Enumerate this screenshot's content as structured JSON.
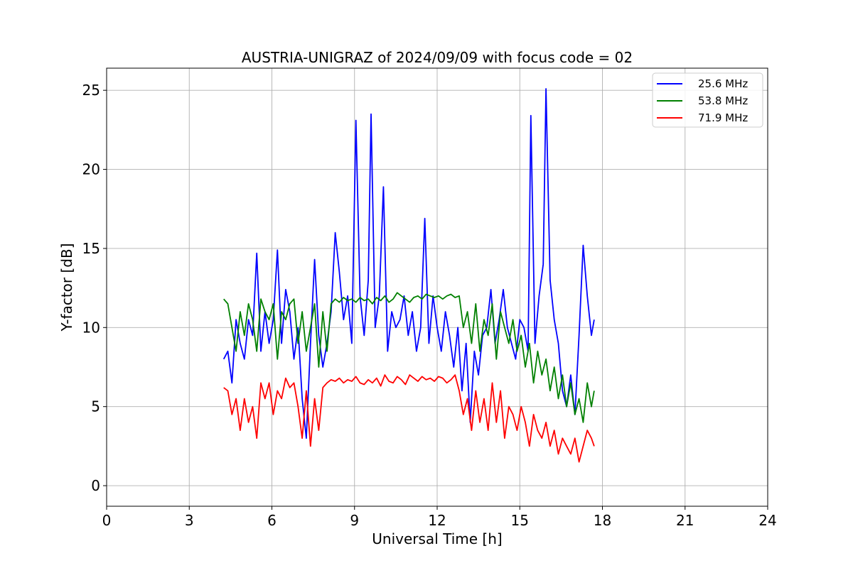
{
  "chart_data": {
    "type": "line",
    "title": "AUSTRIA-UNIGRAZ of 2024/09/09 with focus code = 02",
    "xlabel": "Universal Time [h]",
    "ylabel": "Y-factor [dB]",
    "xlim": [
      0,
      24
    ],
    "ylim": [
      -1.3,
      26.4
    ],
    "xticks": [
      0,
      3,
      6,
      9,
      12,
      15,
      18,
      21,
      24
    ],
    "yticks": [
      0,
      5,
      10,
      15,
      20,
      25
    ],
    "grid": true,
    "legend_position": "top-right",
    "series": [
      {
        "name": "25.6 MHz",
        "color": "#0000ff",
        "x": [
          4.25,
          4.4,
          4.55,
          4.7,
          4.85,
          5.0,
          5.15,
          5.3,
          5.45,
          5.6,
          5.75,
          5.9,
          6.05,
          6.2,
          6.35,
          6.5,
          6.65,
          6.8,
          6.95,
          7.1,
          7.25,
          7.4,
          7.55,
          7.7,
          7.85,
          8.0,
          8.15,
          8.3,
          8.45,
          8.6,
          8.75,
          8.9,
          9.05,
          9.2,
          9.35,
          9.5,
          9.6,
          9.75,
          9.9,
          10.05,
          10.2,
          10.35,
          10.5,
          10.65,
          10.8,
          10.95,
          11.1,
          11.25,
          11.4,
          11.55,
          11.7,
          11.85,
          12.0,
          12.15,
          12.3,
          12.45,
          12.6,
          12.75,
          12.9,
          13.05,
          13.2,
          13.35,
          13.5,
          13.65,
          13.8,
          13.95,
          14.1,
          14.25,
          14.4,
          14.55,
          14.7,
          14.85,
          15.0,
          15.15,
          15.3,
          15.4,
          15.55,
          15.7,
          15.85,
          15.95,
          16.1,
          16.25,
          16.4,
          16.55,
          16.7,
          16.85,
          17.0,
          17.15,
          17.3,
          17.45,
          17.6,
          17.7
        ],
        "y": [
          8.0,
          8.5,
          6.5,
          10.5,
          9.0,
          8.0,
          10.5,
          9.5,
          14.7,
          8.5,
          11.0,
          9.0,
          10.5,
          14.9,
          9.0,
          12.4,
          11.0,
          8.0,
          10.0,
          5.5,
          3.0,
          9.0,
          14.3,
          9.5,
          7.5,
          9.0,
          11.0,
          16.0,
          13.5,
          10.5,
          12.0,
          9.0,
          23.1,
          12.0,
          9.5,
          13.0,
          23.5,
          10.0,
          12.0,
          18.9,
          8.5,
          11.0,
          10.0,
          10.5,
          12.0,
          9.5,
          11.0,
          8.5,
          10.0,
          16.9,
          9.0,
          12.0,
          10.0,
          8.5,
          11.0,
          9.5,
          7.5,
          10.0,
          6.0,
          9.0,
          4.0,
          8.5,
          7.0,
          9.5,
          10.0,
          12.4,
          9.0,
          10.5,
          12.4,
          10.0,
          9.0,
          8.0,
          10.5,
          10.0,
          8.5,
          23.4,
          9.0,
          12.0,
          14.0,
          25.1,
          13.0,
          10.5,
          9.0,
          6.0,
          5.0,
          7.0,
          4.5,
          9.5,
          15.2,
          12.0,
          9.5,
          10.5
        ]
      },
      {
        "name": "53.8 MHz",
        "color": "#008000",
        "x": [
          4.25,
          4.4,
          4.55,
          4.7,
          4.85,
          5.0,
          5.15,
          5.3,
          5.45,
          5.6,
          5.75,
          5.9,
          6.05,
          6.2,
          6.35,
          6.5,
          6.65,
          6.8,
          6.95,
          7.1,
          7.25,
          7.4,
          7.55,
          7.7,
          7.85,
          8.0,
          8.15,
          8.3,
          8.45,
          8.6,
          8.75,
          8.9,
          9.05,
          9.2,
          9.35,
          9.5,
          9.65,
          9.8,
          9.95,
          10.1,
          10.25,
          10.4,
          10.55,
          10.7,
          10.85,
          11.0,
          11.15,
          11.3,
          11.45,
          11.6,
          11.75,
          11.9,
          12.05,
          12.2,
          12.35,
          12.5,
          12.65,
          12.8,
          12.95,
          13.1,
          13.25,
          13.4,
          13.55,
          13.7,
          13.85,
          14.0,
          14.15,
          14.3,
          14.45,
          14.6,
          14.75,
          14.9,
          15.05,
          15.2,
          15.35,
          15.5,
          15.65,
          15.8,
          15.95,
          16.1,
          16.25,
          16.4,
          16.55,
          16.7,
          16.85,
          17.0,
          17.15,
          17.3,
          17.45,
          17.6,
          17.7
        ],
        "y": [
          11.8,
          11.5,
          10.0,
          8.5,
          11.0,
          9.5,
          11.5,
          10.5,
          8.5,
          11.8,
          11.0,
          10.5,
          11.5,
          8.0,
          11.0,
          10.5,
          11.5,
          11.8,
          9.0,
          11.0,
          8.5,
          10.0,
          11.5,
          7.5,
          11.0,
          8.5,
          11.5,
          11.8,
          11.6,
          11.9,
          11.7,
          11.8,
          11.6,
          11.9,
          11.7,
          11.8,
          11.5,
          11.9,
          11.7,
          12.0,
          11.6,
          11.8,
          12.2,
          12.0,
          11.8,
          11.6,
          11.9,
          12.0,
          11.8,
          12.1,
          12.0,
          11.9,
          12.0,
          11.8,
          12.0,
          12.1,
          11.9,
          12.0,
          10.0,
          11.0,
          9.0,
          11.5,
          8.5,
          10.5,
          9.5,
          11.5,
          8.0,
          11.0,
          10.0,
          9.0,
          10.5,
          8.5,
          9.5,
          7.5,
          9.0,
          6.5,
          8.5,
          7.0,
          8.0,
          6.0,
          7.5,
          5.5,
          7.0,
          5.0,
          6.5,
          4.5,
          5.5,
          4.0,
          6.5,
          5.0,
          6.0
        ]
      },
      {
        "name": "71.9 MHz",
        "color": "#ff0000",
        "x": [
          4.25,
          4.4,
          4.55,
          4.7,
          4.85,
          5.0,
          5.15,
          5.3,
          5.45,
          5.6,
          5.75,
          5.9,
          6.05,
          6.2,
          6.35,
          6.5,
          6.65,
          6.8,
          6.95,
          7.1,
          7.25,
          7.4,
          7.55,
          7.7,
          7.85,
          8.0,
          8.15,
          8.3,
          8.45,
          8.6,
          8.75,
          8.9,
          9.05,
          9.2,
          9.35,
          9.5,
          9.65,
          9.8,
          9.95,
          10.1,
          10.25,
          10.4,
          10.55,
          10.7,
          10.85,
          11.0,
          11.15,
          11.3,
          11.45,
          11.6,
          11.75,
          11.9,
          12.05,
          12.2,
          12.35,
          12.5,
          12.65,
          12.8,
          12.95,
          13.1,
          13.25,
          13.4,
          13.55,
          13.7,
          13.85,
          14.0,
          14.15,
          14.3,
          14.45,
          14.6,
          14.75,
          14.9,
          15.05,
          15.2,
          15.35,
          15.5,
          15.65,
          15.8,
          15.95,
          16.1,
          16.25,
          16.4,
          16.55,
          16.7,
          16.85,
          17.0,
          17.15,
          17.3,
          17.45,
          17.6,
          17.7
        ],
        "y": [
          6.2,
          6.0,
          4.5,
          5.5,
          3.5,
          5.5,
          4.0,
          5.0,
          3.0,
          6.5,
          5.5,
          6.5,
          4.5,
          6.0,
          5.5,
          6.8,
          6.2,
          6.5,
          5.0,
          3.0,
          6.0,
          2.5,
          5.5,
          3.5,
          6.2,
          6.5,
          6.7,
          6.6,
          6.8,
          6.5,
          6.7,
          6.6,
          6.9,
          6.5,
          6.4,
          6.7,
          6.5,
          6.8,
          6.3,
          7.0,
          6.6,
          6.5,
          6.9,
          6.7,
          6.4,
          7.0,
          6.8,
          6.6,
          6.9,
          6.7,
          6.8,
          6.6,
          6.9,
          6.8,
          6.5,
          6.7,
          7.0,
          6.0,
          4.5,
          5.5,
          3.5,
          6.0,
          4.0,
          5.5,
          3.5,
          6.5,
          4.0,
          6.0,
          3.0,
          5.0,
          4.5,
          3.5,
          5.0,
          4.0,
          2.5,
          4.5,
          3.5,
          3.0,
          4.0,
          2.5,
          3.5,
          2.0,
          3.0,
          2.5,
          2.0,
          3.0,
          1.5,
          2.5,
          3.5,
          3.0,
          2.5
        ]
      }
    ]
  }
}
